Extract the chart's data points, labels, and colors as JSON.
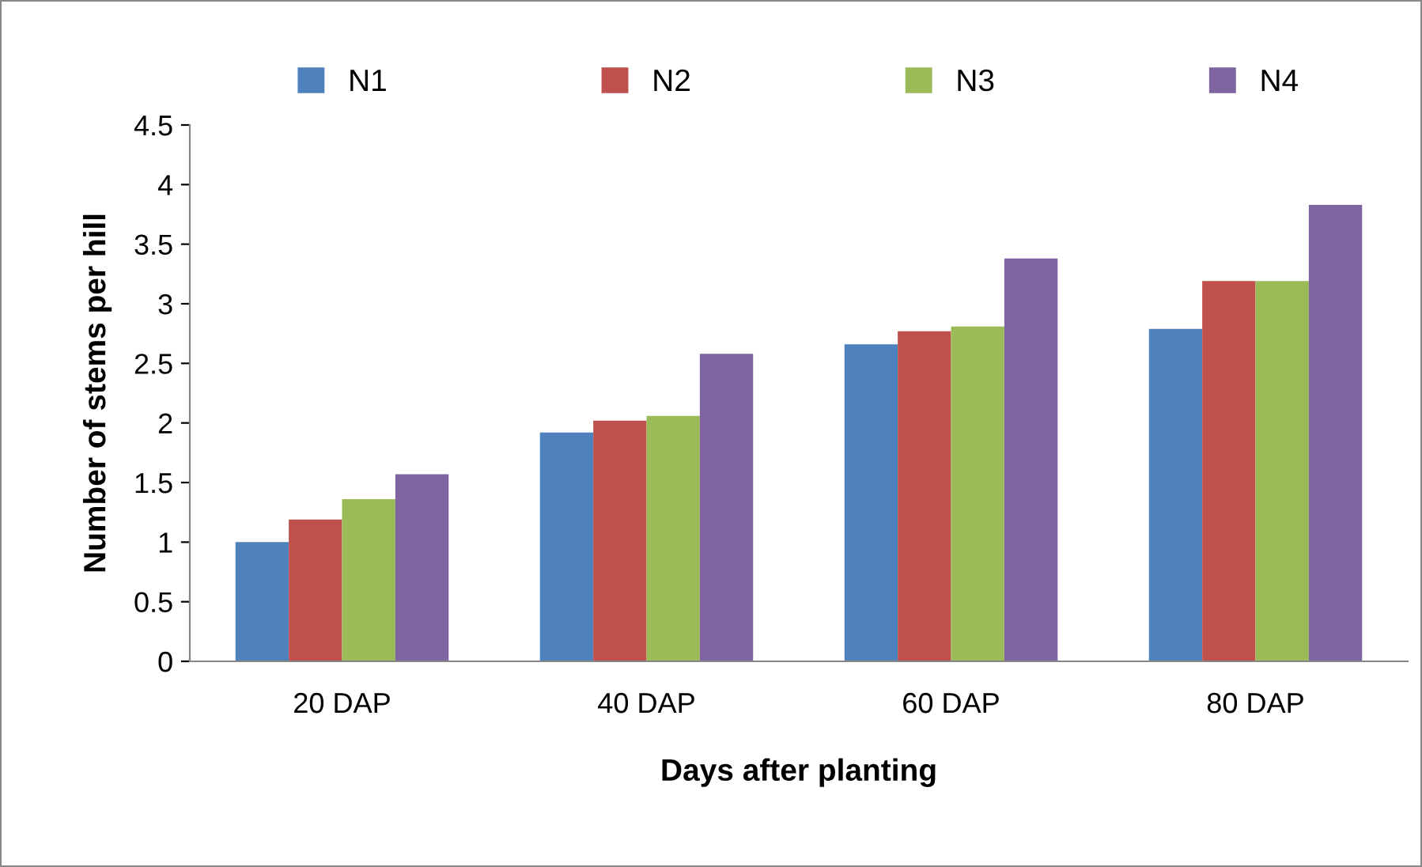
{
  "chart_data": {
    "type": "bar",
    "xlabel": "Days after planting",
    "ylabel": "Number of stems per hill",
    "categories": [
      "20 DAP",
      "40 DAP",
      "60 DAP",
      "80 DAP"
    ],
    "series": [
      {
        "name": "N1",
        "color": "#4f81bd",
        "values": [
          1.0,
          1.92,
          2.66,
          2.79
        ]
      },
      {
        "name": "N2",
        "color": "#c0504d",
        "values": [
          1.19,
          2.02,
          2.77,
          3.19
        ]
      },
      {
        "name": "N3",
        "color": "#9bbb59",
        "values": [
          1.36,
          2.06,
          2.81,
          3.19
        ]
      },
      {
        "name": "N4",
        "color": "#8064a2",
        "values": [
          1.57,
          2.58,
          3.38,
          3.83
        ]
      }
    ],
    "ylim": [
      0,
      4.5
    ],
    "yticks": [
      0,
      0.5,
      1,
      1.5,
      2,
      2.5,
      3,
      3.5,
      4,
      4.5
    ],
    "grid": false,
    "legend": "top"
  }
}
